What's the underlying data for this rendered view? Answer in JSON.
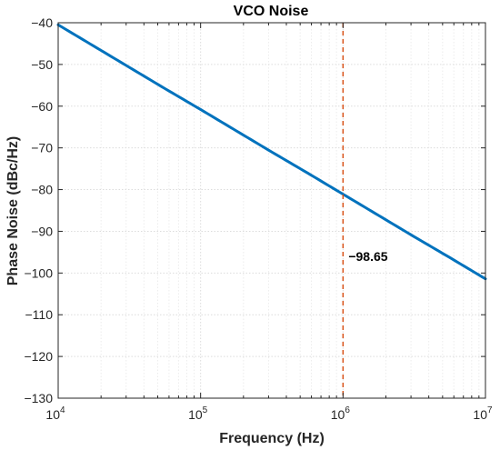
{
  "chart_data": {
    "type": "line",
    "title": "VCO Noise",
    "xlabel": "Frequency (Hz)",
    "ylabel": "Phase Noise (dBc/Hz)",
    "x_scale": "log",
    "xlim": [
      10000,
      10000000
    ],
    "ylim": [
      -130,
      -40
    ],
    "grid": true,
    "x_ticks": [
      {
        "base": "10",
        "exp": "4",
        "value": 10000
      },
      {
        "base": "10",
        "exp": "5",
        "value": 100000
      },
      {
        "base": "10",
        "exp": "6",
        "value": 1000000
      },
      {
        "base": "10",
        "exp": "7",
        "value": 10000000
      }
    ],
    "y_ticks": [
      {
        "label": "−40",
        "value": -40
      },
      {
        "label": "−50",
        "value": -50
      },
      {
        "label": "−60",
        "value": -60
      },
      {
        "label": "−70",
        "value": -70
      },
      {
        "label": "−80",
        "value": -80
      },
      {
        "label": "−90",
        "value": -90
      },
      {
        "label": "−100",
        "value": -100
      },
      {
        "label": "−110",
        "value": -110
      },
      {
        "label": "−120",
        "value": -120
      },
      {
        "label": "−130",
        "value": -130
      }
    ],
    "series": [
      {
        "color": "#0072BD",
        "x": [
          10000,
          17783,
          31623,
          56234,
          100000,
          177828,
          316228,
          562341,
          1000000,
          1778279,
          3162278,
          5623413,
          10000000
        ],
        "y": [
          -40.5,
          -45.6,
          -50.7,
          -55.8,
          -60.8,
          -65.9,
          -71.0,
          -76.0,
          -81.1,
          -86.2,
          -91.3,
          -96.3,
          -101.4
        ]
      }
    ],
    "marker_line": {
      "x": 1000000,
      "color": "#D95319",
      "style": "dashed"
    },
    "annotation": {
      "text": "−98.65",
      "x": 1000000,
      "y": -98.65
    }
  }
}
